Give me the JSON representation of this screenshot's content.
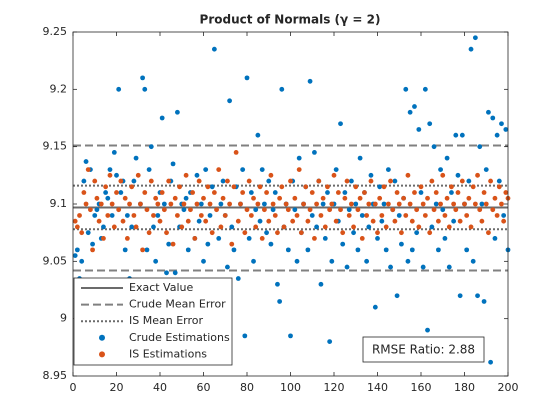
{
  "chart_data": {
    "type": "scatter",
    "title": "Product of Normals (γ = 2)",
    "annotation": "RMSE Ratio: 2.88",
    "xlim": [
      0,
      200
    ],
    "xticks": [
      0,
      20,
      40,
      60,
      80,
      100,
      120,
      140,
      160,
      180,
      200
    ],
    "ylim": [
      8.95,
      9.25
    ],
    "yticks": [
      8.95,
      9,
      9.05,
      9.1,
      9.15,
      9.2,
      9.25
    ],
    "x": [
      1,
      2,
      3,
      4,
      5,
      6,
      7,
      8,
      9,
      10,
      11,
      12,
      13,
      14,
      15,
      16,
      17,
      18,
      19,
      20,
      21,
      22,
      23,
      24,
      25,
      26,
      27,
      28,
      29,
      30,
      31,
      32,
      33,
      34,
      35,
      36,
      37,
      38,
      39,
      40,
      41,
      42,
      43,
      44,
      45,
      46,
      47,
      48,
      49,
      50,
      51,
      52,
      53,
      54,
      55,
      56,
      57,
      58,
      59,
      60,
      61,
      62,
      63,
      64,
      65,
      66,
      67,
      68,
      69,
      70,
      71,
      72,
      73,
      74,
      75,
      76,
      77,
      78,
      79,
      80,
      81,
      82,
      83,
      84,
      85,
      86,
      87,
      88,
      89,
      90,
      91,
      92,
      93,
      94,
      95,
      96,
      97,
      98,
      99,
      100,
      101,
      102,
      103,
      104,
      105,
      106,
      107,
      108,
      109,
      110,
      111,
      112,
      113,
      114,
      115,
      116,
      117,
      118,
      119,
      120,
      121,
      122,
      123,
      124,
      125,
      126,
      127,
      128,
      129,
      130,
      131,
      132,
      133,
      134,
      135,
      136,
      137,
      138,
      139,
      140,
      141,
      142,
      143,
      144,
      145,
      146,
      147,
      148,
      149,
      150,
      151,
      152,
      153,
      154,
      155,
      156,
      157,
      158,
      159,
      160,
      161,
      162,
      163,
      164,
      165,
      166,
      167,
      168,
      169,
      170,
      171,
      172,
      173,
      174,
      175,
      176,
      177,
      178,
      179,
      180,
      181,
      182,
      183,
      184,
      185,
      186,
      187,
      188,
      189,
      190,
      191,
      192,
      193,
      194,
      195,
      196,
      197,
      198,
      199,
      200
    ],
    "reference_lines": [
      {
        "name": "Exact Value",
        "style": "solid",
        "color": "#6b6b6b",
        "values": [
          9.097
        ]
      },
      {
        "name": "Crude Mean Error",
        "style": "dashed",
        "color": "#808080",
        "values": [
          9.042,
          9.151
        ]
      },
      {
        "name": "IS Mean Error",
        "style": "dotted",
        "color": "#6b6b6b",
        "values": [
          9.078,
          9.116
        ]
      }
    ],
    "series": [
      {
        "name": "Crude Estimations",
        "color": "#0072bd",
        "values": [
          9.055,
          9.06,
          9.035,
          9.05,
          9.12,
          9.137,
          9.075,
          9.13,
          9.065,
          9.09,
          9.095,
          9.1,
          9.07,
          9.08,
          9.11,
          9.105,
          9.13,
          9.09,
          9.145,
          9.125,
          9.2,
          9.11,
          9.12,
          9.06,
          9.09,
          9.035,
          9.08,
          9.12,
          9.14,
          9.0,
          9.1,
          9.21,
          9.2,
          9.06,
          9.13,
          9.15,
          9.08,
          9.05,
          9.09,
          9.11,
          9.175,
          9.1,
          9.04,
          9.065,
          9.12,
          9.135,
          9.04,
          9.18,
          9.08,
          9.1,
          9.095,
          9.105,
          9.06,
          9.11,
          9.02,
          9.07,
          9.125,
          9.085,
          9.1,
          9.05,
          9.13,
          9.065,
          9.09,
          9.115,
          9.235,
          9.03,
          9.07,
          9.1,
          9.12,
          9.09,
          9.045,
          9.19,
          9.08,
          9.06,
          9.115,
          9.035,
          9.1,
          9.13,
          8.985,
          9.21,
          9.07,
          9.11,
          9.05,
          9.095,
          9.16,
          9.085,
          9.13,
          9.1,
          9.075,
          9.12,
          9.065,
          9.095,
          9.11,
          9.03,
          9.015,
          9.2,
          9.08,
          9.1,
          9.06,
          8.985,
          9.12,
          9.095,
          9.05,
          9.14,
          9.075,
          9.1,
          9.115,
          9.06,
          9.207,
          9.09,
          9.145,
          9.08,
          9.12,
          9.03,
          9.1,
          9.07,
          9.11,
          8.98,
          9.05,
          9.1,
          9.13,
          9.085,
          9.17,
          9.065,
          9.11,
          9.045,
          9.095,
          9.12,
          9.075,
          9.1,
          9.06,
          9.14,
          9.09,
          9.11,
          9.05,
          9.08,
          9.125,
          9.1,
          9.01,
          9.07,
          9.115,
          9.085,
          9.1,
          9.06,
          9.13,
          9.045,
          9.095,
          9.12,
          9.02,
          9.09,
          9.065,
          9.105,
          9.2,
          9.05,
          9.18,
          9.06,
          9.185,
          9.075,
          9.165,
          9.11,
          9.045,
          9.2,
          8.99,
          9.17,
          9.08,
          9.15,
          9.1,
          9.06,
          9.13,
          9.095,
          9.07,
          9.14,
          9.045,
          9.11,
          9.085,
          9.16,
          9.125,
          9.02,
          9.16,
          9.1,
          9.06,
          9.12,
          9.235,
          9.05,
          9.245,
          9.02,
          9.15,
          9.1,
          9.015,
          9.13,
          9.18,
          8.962,
          9.175,
          9.07,
          9.16,
          9.12,
          9.17,
          9.09,
          9.165,
          9.06
        ]
      },
      {
        "name": "IS Estimations",
        "color": "#d95319",
        "values": [
          9.085,
          9.08,
          9.09,
          9.075,
          9.11,
          9.1,
          9.13,
          9.095,
          9.06,
          9.12,
          9.105,
          9.085,
          9.1,
          9.07,
          9.115,
          9.09,
          9.125,
          9.1,
          9.08,
          9.11,
          9.095,
          9.12,
          9.085,
          9.105,
          9.07,
          9.1,
          9.115,
          9.09,
          9.08,
          9.125,
          9.1,
          9.06,
          9.11,
          9.095,
          9.075,
          9.12,
          9.09,
          9.105,
          9.1,
          9.085,
          9.11,
          9.095,
          9.075,
          9.12,
          9.1,
          9.065,
          9.105,
          9.09,
          9.115,
          9.08,
          9.1,
          9.125,
          9.085,
          9.095,
          9.11,
          9.07,
          9.1,
          9.12,
          9.09,
          9.105,
          9.085,
          9.115,
          9.1,
          9.075,
          9.11,
          9.095,
          9.13,
          9.08,
          9.105,
          9.09,
          9.12,
          9.1,
          9.065,
          9.115,
          9.145,
          9.085,
          9.1,
          9.11,
          9.075,
          9.095,
          9.12,
          9.09,
          9.105,
          9.08,
          9.1,
          9.115,
          9.07,
          9.095,
          9.11,
          9.085,
          9.125,
          9.1,
          9.09,
          9.075,
          9.105,
          9.115,
          9.08,
          9.1,
          9.095,
          9.12,
          9.085,
          9.105,
          9.09,
          9.13,
          9.075,
          9.1,
          9.115,
          9.085,
          9.095,
          9.11,
          9.07,
          9.1,
          9.12,
          9.09,
          9.105,
          9.08,
          9.115,
          9.095,
          9.1,
          9.125,
          9.085,
          9.11,
          9.095,
          9.075,
          9.105,
          9.12,
          9.09,
          9.1,
          9.08,
          9.115,
          9.095,
          9.105,
          9.07,
          9.11,
          9.09,
          9.1,
          9.12,
          9.085,
          9.1,
          9.075,
          9.105,
          9.09,
          9.115,
          9.08,
          9.1,
          9.12,
          9.095,
          9.085,
          9.11,
          9.1,
          9.075,
          9.105,
          9.09,
          9.125,
          9.1,
          9.085,
          9.11,
          9.095,
          9.08,
          9.115,
          9.1,
          9.09,
          9.105,
          9.075,
          9.12,
          9.095,
          9.11,
          9.085,
          9.1,
          9.125,
          9.09,
          9.105,
          9.08,
          9.115,
          9.1,
          9.095,
          9.11,
          9.085,
          9.12,
          9.1,
          9.09,
          9.105,
          9.08,
          9.115,
          9.1,
          9.125,
          9.095,
          9.085,
          9.11,
          9.1,
          9.075,
          9.12,
          9.095,
          9.105,
          9.09,
          9.115,
          9.1,
          9.085,
          9.11,
          9.105
        ]
      }
    ]
  }
}
